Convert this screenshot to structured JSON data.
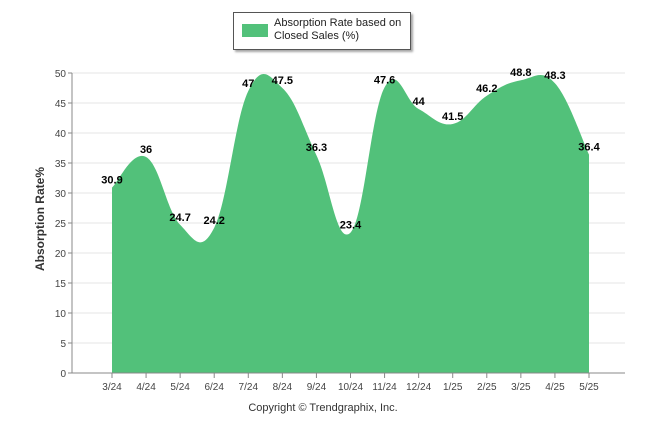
{
  "legend": {
    "label": "Absorption Rate based on Closed Sales (%)"
  },
  "footer": {
    "copyright": "Copyright © Trendgraphix, Inc."
  },
  "colors": {
    "series": "#52c17a",
    "grid": "#e6e6e6",
    "axis": "#888888",
    "label": "#000000"
  },
  "chart_data": {
    "type": "area",
    "ylabel": "Absorption Rate%",
    "xlabel": "",
    "ylim": [
      0,
      50
    ],
    "yticks": [
      0,
      5,
      10,
      15,
      20,
      25,
      30,
      35,
      40,
      45,
      50
    ],
    "grid": true,
    "legend_position": "top-center",
    "categories": [
      "3/24",
      "4/24",
      "5/24",
      "6/24",
      "7/24",
      "8/24",
      "9/24",
      "10/24",
      "11/24",
      "12/24",
      "1/25",
      "2/25",
      "3/25",
      "4/25",
      "5/25"
    ],
    "series": [
      {
        "name": "Absorption Rate based on Closed Sales (%)",
        "values": [
          30.9,
          36,
          24.7,
          24.2,
          47,
          47.5,
          36.3,
          23.4,
          47.6,
          44,
          41.5,
          46.2,
          48.8,
          48.3,
          36.4
        ],
        "labels": [
          "30.9",
          "36",
          "24.7",
          "24.2",
          "47",
          "47.5",
          "36.3",
          "23.4",
          "47.6",
          "44",
          "41.5",
          "46.2",
          "48.8",
          "48.3",
          "36.4"
        ]
      }
    ]
  }
}
